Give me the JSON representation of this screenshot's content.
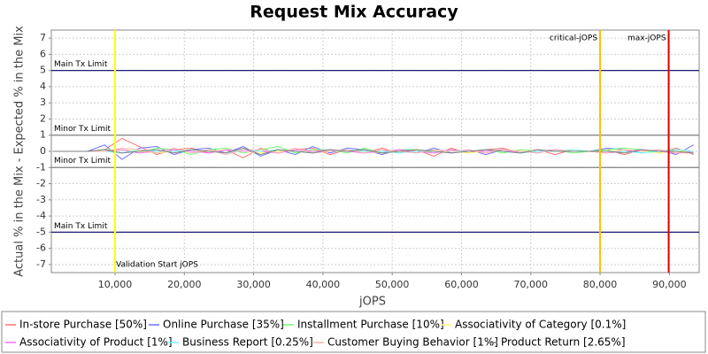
{
  "chart_data": {
    "type": "line",
    "title": "Request Mix Accuracy",
    "x_label": "jOPS",
    "y_label": "Actual % in the Mix - Expected % in the Mix",
    "xlim": [
      800,
      94300
    ],
    "ylim": [
      -7.5,
      7.5
    ],
    "xticks": [
      {
        "value": 10000,
        "label": "10,000"
      },
      {
        "value": 20000,
        "label": "20,000"
      },
      {
        "value": 30000,
        "label": "30,000"
      },
      {
        "value": 40000,
        "label": "40,000"
      },
      {
        "value": 50000,
        "label": "50,000"
      },
      {
        "value": 60000,
        "label": "60,000"
      },
      {
        "value": 70000,
        "label": "70,000"
      },
      {
        "value": 80000,
        "label": "80,000"
      },
      {
        "value": 90000,
        "label": "90,000"
      }
    ],
    "yticks": [
      -7,
      -6,
      -5,
      -4,
      -3,
      -2,
      -1,
      0,
      1,
      2,
      3,
      4,
      5,
      6,
      7
    ],
    "grid": true,
    "legend": "bottom",
    "horizontal_markers": [
      {
        "value": 5,
        "label": "Main Tx Limit",
        "color": "#000066"
      },
      {
        "value": 1,
        "label": "Minor Tx Limit",
        "color": "#808080"
      },
      {
        "value": -1,
        "label": "Minor Tx Limit",
        "color": "#808080"
      },
      {
        "value": -5,
        "label": "Main Tx Limit",
        "color": "#000066"
      }
    ],
    "vertical_markers": [
      {
        "value": 10000,
        "label": "Validation Start jOPS",
        "color": "#ffff00"
      },
      {
        "value": 80000,
        "label": "critical-jOPS",
        "color": "#ffc000"
      },
      {
        "value": 89900,
        "label": "max-jOPS",
        "color": "#e00000"
      }
    ],
    "x": [
      1000,
      3500,
      6000,
      8500,
      11000,
      13500,
      16000,
      18500,
      21000,
      23500,
      26000,
      28500,
      31000,
      33500,
      36000,
      38500,
      41000,
      43500,
      46000,
      48500,
      51000,
      53500,
      56000,
      58500,
      61000,
      63500,
      66000,
      68500,
      71000,
      73500,
      76000,
      78500,
      81000,
      83500,
      86000,
      88500,
      91000,
      93500
    ],
    "series": [
      {
        "name": "In-store Purchase [50%]",
        "color": "#ff7070",
        "values": [
          0,
          0,
          0,
          0.1,
          0.8,
          0.3,
          -0.2,
          0.1,
          0.2,
          -0.1,
          0.1,
          -0.4,
          0.2,
          -0.1,
          0.1,
          0.2,
          -0.2,
          0.1,
          -0.1,
          0.2,
          -0.1,
          0.1,
          -0.3,
          0.2,
          -0.1,
          0.1,
          0.2,
          -0.1,
          0.1,
          -0.2,
          0.1,
          0,
          0.1,
          -0.2,
          0.1,
          -0.1,
          0.2,
          -0.2
        ]
      },
      {
        "name": "Online Purchase [35%]",
        "color": "#7070ff",
        "values": [
          0,
          0,
          0,
          0.4,
          -0.5,
          0.2,
          0.3,
          -0.2,
          0.1,
          0.2,
          -0.1,
          0.3,
          -0.3,
          0.1,
          -0.2,
          0.3,
          -0.1,
          0.2,
          0.1,
          -0.2,
          0.1,
          -0.1,
          0.2,
          -0.1,
          0.1,
          -0.2,
          0.1,
          0,
          -0.1,
          0.1,
          0,
          0,
          0.2,
          0.1,
          -0.1,
          0.1,
          -0.2,
          0.4
        ]
      },
      {
        "name": "Installment Purchase [10%]",
        "color": "#70ff70",
        "values": [
          0,
          0,
          0,
          0.1,
          0.1,
          -0.1,
          0.2,
          0.1,
          -0.2,
          0.1,
          0.2,
          -0.1,
          0.1,
          0.3,
          -0.1,
          0.1,
          0.1,
          -0.1,
          0.2,
          -0.1,
          0.1,
          0.1,
          -0.1,
          0.1,
          0,
          0.1,
          -0.1,
          0.1,
          0,
          0.1,
          -0.1,
          0,
          0.1,
          0.2,
          0.1,
          -0.1,
          0.1,
          0
        ]
      },
      {
        "name": "Associativity of Category [0.1%]",
        "color": "#ffff70",
        "values": [
          0,
          0,
          0,
          0,
          0.1,
          0,
          -0.1,
          0,
          0.1,
          0,
          0.1,
          0,
          -0.1,
          0,
          0.1,
          0,
          0,
          0.1,
          0,
          -0.1,
          0,
          0.1,
          0,
          0,
          -0.1,
          0,
          0.1,
          0,
          0,
          0,
          0.1,
          0,
          0,
          0.1,
          0,
          -0.1,
          0,
          0
        ]
      },
      {
        "name": "Associativity of Product [1%]",
        "color": "#ff70ff",
        "values": [
          0,
          0,
          0,
          0,
          0.1,
          -0.1,
          0,
          0.1,
          0,
          -0.1,
          0.1,
          0,
          0,
          -0.1,
          0.1,
          0,
          0.1,
          0,
          -0.1,
          0,
          0.1,
          0,
          -0.1,
          0.1,
          0,
          0,
          0.1,
          -0.1,
          0,
          0.1,
          0,
          0,
          -0.1,
          0,
          0.1,
          0,
          -0.1,
          0
        ]
      },
      {
        "name": "Business Report [0.25%]",
        "color": "#70ffff",
        "values": [
          0,
          0,
          0,
          0,
          -0.1,
          0.1,
          0,
          0,
          0.1,
          0,
          -0.1,
          0.1,
          0,
          0.1,
          0,
          -0.1,
          0,
          0.1,
          0,
          0,
          -0.1,
          0,
          0.1,
          0,
          0,
          0.1,
          0,
          -0.1,
          0,
          0,
          0.1,
          0,
          0,
          0,
          -0.1,
          0,
          0.1,
          0
        ]
      },
      {
        "name": "Customer Buying Behavior [1%]",
        "color": "#ffb0b0",
        "values": [
          0,
          0,
          0,
          0,
          0.2,
          0.1,
          -0.1,
          0.2,
          -0.1,
          0.1,
          -0.2,
          0.1,
          0.1,
          -0.1,
          0.2,
          -0.1,
          0,
          0.1,
          -0.1,
          0.1,
          0,
          -0.1,
          0.1,
          0,
          0.1,
          -0.1,
          0.1,
          0,
          -0.1,
          0.1,
          0,
          0,
          -0.1,
          0.1,
          0,
          0.1,
          -0.1,
          -0.1
        ]
      },
      {
        "name": "Product Return [2.65%]",
        "color": "#808080",
        "values": [
          0,
          0,
          0,
          0.1,
          -0.1,
          0,
          0.1,
          -0.1,
          0.1,
          0,
          -0.1,
          0.2,
          -0.2,
          0.1,
          0,
          -0.1,
          0.1,
          0,
          0.1,
          -0.1,
          0,
          0.1,
          0,
          -0.1,
          0,
          0.1,
          0,
          -0.1,
          0.1,
          0,
          0,
          0,
          0,
          -0.1,
          0.1,
          0,
          0,
          -0.1
        ]
      }
    ]
  }
}
